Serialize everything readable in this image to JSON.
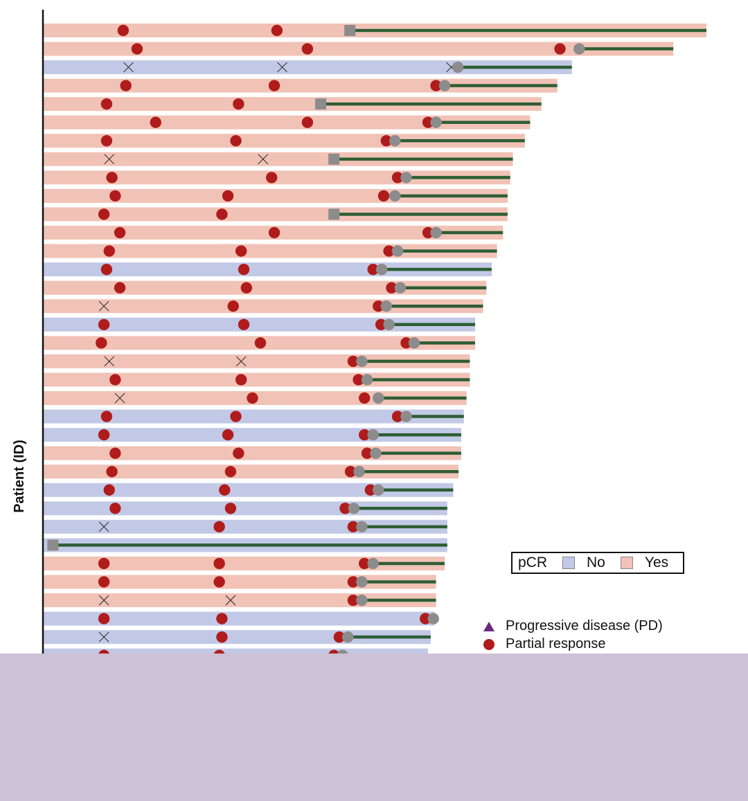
{
  "chart_data": {
    "type": "swimmer",
    "title": "",
    "ylabel": "Patient (ID)",
    "xlabel": "",
    "xlim": [
      0,
      100
    ],
    "legend": {
      "pcr": {
        "title": "pCR",
        "entries": [
          {
            "label": "No",
            "color": "#c2c9e6"
          },
          {
            "label": "Yes",
            "color": "#f1c2b6"
          }
        ],
        "placement": "bottom-right"
      },
      "markers": [
        {
          "label": "Progressive disease (PD)",
          "symbol": "triangle",
          "color": "#6b2a7a"
        },
        {
          "label": "Partial response",
          "symbol": "circle",
          "color": "#b01c1c"
        }
      ]
    },
    "colors": {
      "pcr_no": "#c2c9e6",
      "pcr_yes": "#f1c2b6",
      "partial_response": "#b01c1c",
      "assessment_gray": "#8c8c8c",
      "followup_line": "#2e5e34",
      "x_mark": "#333333",
      "axis": "#111111"
    },
    "patients": [
      {
        "pcr": "Yes",
        "end": 100.0,
        "assessments": [
          {
            "t": 12.0,
            "type": "PR"
          },
          {
            "t": 35.2,
            "type": "PR"
          }
        ],
        "surgery": {
          "t": 46.2,
          "type": "square"
        },
        "followup": [
          46.2,
          100.0
        ]
      },
      {
        "pcr": "Yes",
        "end": 95.0,
        "assessments": [
          {
            "t": 14.1,
            "type": "PR"
          },
          {
            "t": 39.8,
            "type": "PR"
          },
          {
            "t": 77.9,
            "type": "PR"
          }
        ],
        "surgery": {
          "t": 80.8,
          "type": "circle"
        },
        "followup": [
          80.8,
          95.0
        ]
      },
      {
        "pcr": "No",
        "end": 79.7,
        "assessments": [
          {
            "t": 12.8,
            "type": "X"
          },
          {
            "t": 36.0,
            "type": "X"
          },
          {
            "t": 61.5,
            "type": "X"
          }
        ],
        "surgery": {
          "t": 62.5,
          "type": "circle"
        },
        "followup": [
          62.5,
          79.7
        ]
      },
      {
        "pcr": "Yes",
        "end": 77.5,
        "assessments": [
          {
            "t": 12.4,
            "type": "PR"
          },
          {
            "t": 34.8,
            "type": "PR"
          },
          {
            "t": 59.2,
            "type": "PR"
          }
        ],
        "surgery": {
          "t": 60.5,
          "type": "circle"
        },
        "followup": [
          60.5,
          77.5
        ]
      },
      {
        "pcr": "Yes",
        "end": 75.1,
        "assessments": [
          {
            "t": 9.5,
            "type": "PR"
          },
          {
            "t": 29.4,
            "type": "PR"
          }
        ],
        "surgery": {
          "t": 41.8,
          "type": "square"
        },
        "followup": [
          41.8,
          75.1
        ]
      },
      {
        "pcr": "Yes",
        "end": 73.4,
        "assessments": [
          {
            "t": 16.9,
            "type": "PR"
          },
          {
            "t": 39.8,
            "type": "PR"
          },
          {
            "t": 58.0,
            "type": "PR"
          }
        ],
        "surgery": {
          "t": 59.2,
          "type": "circle"
        },
        "followup": [
          59.2,
          73.4
        ]
      },
      {
        "pcr": "Yes",
        "end": 72.6,
        "assessments": [
          {
            "t": 9.5,
            "type": "PR"
          },
          {
            "t": 29.0,
            "type": "PR"
          },
          {
            "t": 51.7,
            "type": "PR"
          }
        ],
        "surgery": {
          "t": 53.0,
          "type": "circle"
        },
        "followup": [
          53.0,
          72.6
        ]
      },
      {
        "pcr": "Yes",
        "end": 70.8,
        "assessments": [
          {
            "t": 9.9,
            "type": "X"
          },
          {
            "t": 33.1,
            "type": "X"
          }
        ],
        "surgery": {
          "t": 43.8,
          "type": "square"
        },
        "followup": [
          43.8,
          70.8
        ]
      },
      {
        "pcr": "Yes",
        "end": 70.4,
        "assessments": [
          {
            "t": 10.3,
            "type": "PR"
          },
          {
            "t": 34.4,
            "type": "PR"
          },
          {
            "t": 53.4,
            "type": "PR"
          }
        ],
        "surgery": {
          "t": 54.7,
          "type": "circle"
        },
        "followup": [
          54.7,
          70.4
        ]
      },
      {
        "pcr": "Yes",
        "end": 70.0,
        "assessments": [
          {
            "t": 10.8,
            "type": "PR"
          },
          {
            "t": 27.8,
            "type": "PR"
          },
          {
            "t": 51.3,
            "type": "PR"
          }
        ],
        "surgery": {
          "t": 53.0,
          "type": "circle"
        },
        "followup": [
          53.0,
          70.0
        ]
      },
      {
        "pcr": "Yes",
        "end": 70.0,
        "assessments": [
          {
            "t": 9.1,
            "type": "PR"
          },
          {
            "t": 26.9,
            "type": "PR"
          }
        ],
        "surgery": {
          "t": 43.8,
          "type": "square"
        },
        "followup": [
          43.8,
          70.0
        ]
      },
      {
        "pcr": "Yes",
        "end": 69.3,
        "assessments": [
          {
            "t": 11.5,
            "type": "PR"
          },
          {
            "t": 34.8,
            "type": "PR"
          },
          {
            "t": 58.0,
            "type": "PR"
          }
        ],
        "surgery": {
          "t": 59.2,
          "type": "circle"
        },
        "followup": [
          59.2,
          69.3
        ]
      },
      {
        "pcr": "Yes",
        "end": 68.4,
        "assessments": [
          {
            "t": 9.9,
            "type": "PR"
          },
          {
            "t": 29.8,
            "type": "PR"
          },
          {
            "t": 52.1,
            "type": "PR"
          }
        ],
        "surgery": {
          "t": 53.4,
          "type": "circle"
        },
        "followup": [
          53.4,
          68.4
        ]
      },
      {
        "pcr": "No",
        "end": 67.6,
        "assessments": [
          {
            "t": 9.5,
            "type": "PR"
          },
          {
            "t": 30.2,
            "type": "PR"
          },
          {
            "t": 49.7,
            "type": "PR"
          }
        ],
        "surgery": {
          "t": 51.0,
          "type": "circle"
        },
        "followup": [
          51.0,
          67.6
        ]
      },
      {
        "pcr": "Yes",
        "end": 66.8,
        "assessments": [
          {
            "t": 11.5,
            "type": "PR"
          },
          {
            "t": 30.6,
            "type": "PR"
          },
          {
            "t": 52.5,
            "type": "PR"
          }
        ],
        "surgery": {
          "t": 53.8,
          "type": "circle"
        },
        "followup": [
          53.8,
          66.8
        ]
      },
      {
        "pcr": "Yes",
        "end": 66.3,
        "assessments": [
          {
            "t": 9.1,
            "type": "X"
          },
          {
            "t": 28.6,
            "type": "PR"
          },
          {
            "t": 50.5,
            "type": "PR"
          }
        ],
        "surgery": {
          "t": 51.7,
          "type": "circle"
        },
        "followup": [
          51.7,
          66.3
        ]
      },
      {
        "pcr": "No",
        "end": 65.1,
        "assessments": [
          {
            "t": 9.1,
            "type": "PR"
          },
          {
            "t": 30.2,
            "type": "PR"
          },
          {
            "t": 50.9,
            "type": "PR"
          }
        ],
        "surgery": {
          "t": 52.1,
          "type": "circle"
        },
        "followup": [
          52.1,
          65.1
        ]
      },
      {
        "pcr": "Yes",
        "end": 65.1,
        "assessments": [
          {
            "t": 8.7,
            "type": "PR"
          },
          {
            "t": 32.7,
            "type": "PR"
          },
          {
            "t": 54.7,
            "type": "PR"
          }
        ],
        "surgery": {
          "t": 55.9,
          "type": "circle"
        },
        "followup": [
          55.9,
          65.1
        ]
      },
      {
        "pcr": "Yes",
        "end": 64.3,
        "assessments": [
          {
            "t": 9.9,
            "type": "X"
          },
          {
            "t": 29.8,
            "type": "X"
          },
          {
            "t": 46.7,
            "type": "PR"
          }
        ],
        "surgery": {
          "t": 48.0,
          "type": "circle"
        },
        "followup": [
          48.0,
          64.3
        ]
      },
      {
        "pcr": "Yes",
        "end": 64.3,
        "assessments": [
          {
            "t": 10.8,
            "type": "PR"
          },
          {
            "t": 29.8,
            "type": "PR"
          },
          {
            "t": 47.5,
            "type": "PR"
          }
        ],
        "surgery": {
          "t": 48.8,
          "type": "circle"
        },
        "followup": [
          48.8,
          64.3
        ]
      },
      {
        "pcr": "Yes",
        "end": 63.8,
        "assessments": [
          {
            "t": 11.5,
            "type": "X"
          },
          {
            "t": 31.5,
            "type": "PR"
          },
          {
            "t": 48.4,
            "type": "PR"
          }
        ],
        "surgery": {
          "t": 50.5,
          "type": "circle"
        },
        "followup": [
          50.5,
          63.8
        ]
      },
      {
        "pcr": "No",
        "end": 63.4,
        "assessments": [
          {
            "t": 9.5,
            "type": "PR"
          },
          {
            "t": 29.0,
            "type": "PR"
          },
          {
            "t": 53.4,
            "type": "PR"
          }
        ],
        "surgery": {
          "t": 54.7,
          "type": "circle"
        },
        "followup": [
          54.7,
          63.4
        ]
      },
      {
        "pcr": "No",
        "end": 63.0,
        "assessments": [
          {
            "t": 9.1,
            "type": "PR"
          },
          {
            "t": 27.8,
            "type": "PR"
          },
          {
            "t": 48.4,
            "type": "PR"
          }
        ],
        "surgery": {
          "t": 49.7,
          "type": "circle"
        },
        "followup": [
          49.7,
          63.0
        ]
      },
      {
        "pcr": "Yes",
        "end": 63.0,
        "assessments": [
          {
            "t": 10.8,
            "type": "PR"
          },
          {
            "t": 29.4,
            "type": "PR"
          },
          {
            "t": 48.8,
            "type": "PR"
          }
        ],
        "surgery": {
          "t": 50.1,
          "type": "circle"
        },
        "followup": [
          50.1,
          63.0
        ]
      },
      {
        "pcr": "Yes",
        "end": 62.6,
        "assessments": [
          {
            "t": 10.3,
            "type": "PR"
          },
          {
            "t": 28.2,
            "type": "PR"
          },
          {
            "t": 46.3,
            "type": "PR"
          }
        ],
        "surgery": {
          "t": 47.6,
          "type": "circle"
        },
        "followup": [
          47.6,
          62.6
        ]
      },
      {
        "pcr": "No",
        "end": 61.8,
        "assessments": [
          {
            "t": 9.9,
            "type": "PR"
          },
          {
            "t": 27.3,
            "type": "PR"
          },
          {
            "t": 49.3,
            "type": "PR"
          }
        ],
        "surgery": {
          "t": 50.5,
          "type": "circle"
        },
        "followup": [
          50.5,
          61.8
        ]
      },
      {
        "pcr": "No",
        "end": 60.9,
        "assessments": [
          {
            "t": 10.8,
            "type": "PR"
          },
          {
            "t": 28.2,
            "type": "PR"
          },
          {
            "t": 45.5,
            "type": "PR"
          }
        ],
        "surgery": {
          "t": 46.8,
          "type": "circle"
        },
        "followup": [
          46.8,
          60.9
        ]
      },
      {
        "pcr": "No",
        "end": 60.9,
        "assessments": [
          {
            "t": 9.1,
            "type": "X"
          },
          {
            "t": 26.5,
            "type": "PR"
          },
          {
            "t": 46.7,
            "type": "PR"
          }
        ],
        "surgery": {
          "t": 48.0,
          "type": "circle"
        },
        "followup": [
          48.0,
          60.9
        ]
      },
      {
        "pcr": "No",
        "end": 60.9,
        "assessments": [],
        "surgery": {
          "t": 1.4,
          "type": "square"
        },
        "followup": [
          1.4,
          60.9
        ]
      },
      {
        "pcr": "Yes",
        "end": 60.5,
        "assessments": [
          {
            "t": 9.1,
            "type": "PR"
          },
          {
            "t": 26.5,
            "type": "PR"
          },
          {
            "t": 48.4,
            "type": "PR"
          }
        ],
        "surgery": {
          "t": 49.7,
          "type": "circle"
        },
        "followup": [
          49.7,
          60.5
        ]
      },
      {
        "pcr": "Yes",
        "end": 59.2,
        "assessments": [
          {
            "t": 9.1,
            "type": "PR"
          },
          {
            "t": 26.5,
            "type": "PR"
          },
          {
            "t": 46.7,
            "type": "PR"
          }
        ],
        "surgery": {
          "t": 48.0,
          "type": "circle"
        },
        "followup": [
          48.0,
          59.2
        ]
      },
      {
        "pcr": "Yes",
        "end": 59.2,
        "assessments": [
          {
            "t": 9.1,
            "type": "X"
          },
          {
            "t": 28.2,
            "type": "X"
          },
          {
            "t": 46.7,
            "type": "PR"
          }
        ],
        "surgery": {
          "t": 48.0,
          "type": "circle"
        },
        "followup": [
          48.0,
          59.2
        ]
      },
      {
        "pcr": "No",
        "end": 59.0,
        "assessments": [
          {
            "t": 9.1,
            "type": "PR"
          },
          {
            "t": 26.9,
            "type": "PR"
          },
          {
            "t": 57.6,
            "type": "PR"
          }
        ],
        "surgery": {
          "t": 58.8,
          "type": "circle"
        },
        "followup": null
      },
      {
        "pcr": "No",
        "end": 58.4,
        "assessments": [
          {
            "t": 9.1,
            "type": "X"
          },
          {
            "t": 26.9,
            "type": "PR"
          },
          {
            "t": 44.6,
            "type": "PR"
          }
        ],
        "surgery": {
          "t": 45.9,
          "type": "circle"
        },
        "followup": [
          45.9,
          58.4
        ]
      },
      {
        "pcr": "No",
        "end": 58.0,
        "assessments": [
          {
            "t": 9.1,
            "type": "PR"
          },
          {
            "t": 26.5,
            "type": "PR"
          },
          {
            "t": 43.8,
            "type": "PR"
          }
        ],
        "surgery": {
          "t": 45.1,
          "type": "circle"
        },
        "followup": null
      }
    ]
  }
}
